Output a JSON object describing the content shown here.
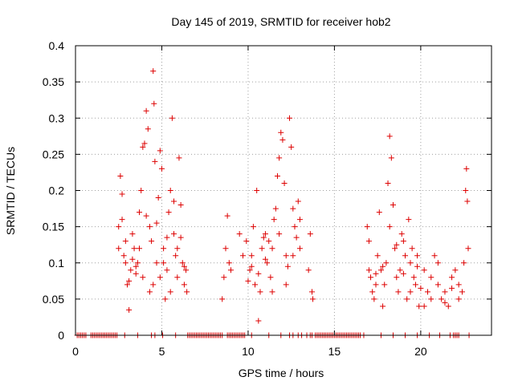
{
  "chart_data": {
    "type": "scatter",
    "title": "Day 145 of 2019, SRMTID for receiver hob2",
    "xlabel": "GPS time / hours",
    "ylabel": "SRMTID / TECUs",
    "xlim": [
      0,
      24.1
    ],
    "ylim": [
      0,
      0.4
    ],
    "x_ticks": [
      0,
      5,
      10,
      15,
      20
    ],
    "x_tick_labels": [
      "0",
      "5",
      "10",
      "15",
      "20"
    ],
    "y_ticks": [
      0,
      0.05,
      0.1,
      0.15,
      0.2,
      0.25,
      0.3,
      0.35,
      0.4
    ],
    "y_tick_labels": [
      "0",
      "0.05",
      "0.1",
      "0.15",
      "0.2",
      "0.25",
      "0.3",
      "0.35",
      "0.4"
    ],
    "grid": true,
    "marker": "+",
    "series": [
      {
        "name": "SRMTID",
        "color": "#dd0000",
        "points": [
          [
            2.5,
            0.15
          ],
          [
            2.6,
            0.22
          ],
          [
            2.7,
            0.195
          ],
          [
            2.8,
            0.11
          ],
          [
            2.9,
            0.13
          ],
          [
            3.0,
            0.07
          ],
          [
            3.1,
            0.035
          ],
          [
            3.2,
            0.09
          ],
          [
            3.3,
            0.14
          ],
          [
            3.4,
            0.12
          ],
          [
            3.5,
            0.085
          ],
          [
            3.6,
            0.1
          ],
          [
            3.7,
            0.17
          ],
          [
            3.8,
            0.2
          ],
          [
            3.9,
            0.26
          ],
          [
            4.0,
            0.265
          ],
          [
            4.1,
            0.31
          ],
          [
            4.2,
            0.285
          ],
          [
            4.3,
            0.15
          ],
          [
            4.4,
            0.13
          ],
          [
            4.5,
            0.365
          ],
          [
            4.55,
            0.32
          ],
          [
            4.6,
            0.24
          ],
          [
            4.7,
            0.1
          ],
          [
            4.8,
            0.19
          ],
          [
            4.9,
            0.255
          ],
          [
            5.0,
            0.23
          ],
          [
            5.1,
            0.12
          ],
          [
            5.2,
            0.05
          ],
          [
            5.3,
            0.09
          ],
          [
            5.4,
            0.17
          ],
          [
            5.5,
            0.2
          ],
          [
            5.6,
            0.3
          ],
          [
            5.7,
            0.14
          ],
          [
            5.8,
            0.11
          ],
          [
            5.9,
            0.08
          ],
          [
            6.0,
            0.245
          ],
          [
            6.1,
            0.18
          ],
          [
            6.2,
            0.1
          ],
          [
            6.3,
            0.07
          ],
          [
            6.4,
            0.09
          ],
          [
            6.45,
            0.06
          ],
          [
            2.5,
            0.12
          ],
          [
            2.7,
            0.16
          ],
          [
            2.9,
            0.1
          ],
          [
            3.1,
            0.075
          ],
          [
            3.3,
            0.105
          ],
          [
            3.5,
            0.095
          ],
          [
            3.7,
            0.12
          ],
          [
            3.9,
            0.08
          ],
          [
            4.1,
            0.165
          ],
          [
            4.3,
            0.06
          ],
          [
            4.5,
            0.07
          ],
          [
            4.7,
            0.155
          ],
          [
            4.9,
            0.08
          ],
          [
            5.1,
            0.1
          ],
          [
            5.3,
            0.135
          ],
          [
            5.5,
            0.06
          ],
          [
            5.7,
            0.185
          ],
          [
            5.9,
            0.12
          ],
          [
            6.1,
            0.135
          ],
          [
            6.3,
            0.095
          ],
          [
            8.5,
            0.05
          ],
          [
            8.6,
            0.08
          ],
          [
            8.7,
            0.12
          ],
          [
            8.8,
            0.165
          ],
          [
            8.9,
            0.1
          ],
          [
            9.0,
            0.09
          ],
          [
            9.5,
            0.14
          ],
          [
            9.7,
            0.11
          ],
          [
            9.9,
            0.13
          ],
          [
            10.0,
            0.075
          ],
          [
            10.1,
            0.09
          ],
          [
            10.2,
            0.11
          ],
          [
            10.3,
            0.15
          ],
          [
            10.4,
            0.07
          ],
          [
            10.5,
            0.2
          ],
          [
            10.6,
            0.02
          ],
          [
            10.7,
            0.06
          ],
          [
            10.8,
            0.12
          ],
          [
            10.9,
            0.135
          ],
          [
            11.0,
            0.14
          ],
          [
            11.1,
            0.1
          ],
          [
            11.2,
            0.13
          ],
          [
            11.3,
            0.08
          ],
          [
            11.4,
            0.06
          ],
          [
            11.5,
            0.16
          ],
          [
            11.6,
            0.175
          ],
          [
            11.7,
            0.22
          ],
          [
            11.8,
            0.245
          ],
          [
            11.9,
            0.28
          ],
          [
            12.0,
            0.27
          ],
          [
            12.1,
            0.21
          ],
          [
            12.2,
            0.11
          ],
          [
            12.3,
            0.095
          ],
          [
            12.4,
            0.3
          ],
          [
            12.5,
            0.26
          ],
          [
            12.6,
            0.175
          ],
          [
            12.7,
            0.15
          ],
          [
            12.8,
            0.135
          ],
          [
            12.9,
            0.185
          ],
          [
            13.0,
            0.12
          ],
          [
            10.2,
            0.095
          ],
          [
            10.6,
            0.085
          ],
          [
            11.0,
            0.105
          ],
          [
            11.4,
            0.12
          ],
          [
            11.8,
            0.14
          ],
          [
            12.2,
            0.07
          ],
          [
            12.6,
            0.11
          ],
          [
            13.0,
            0.16
          ],
          [
            13.5,
            0.09
          ],
          [
            13.6,
            0.14
          ],
          [
            13.7,
            0.06
          ],
          [
            13.75,
            0.05
          ],
          [
            16.9,
            0.15
          ],
          [
            17.0,
            0.13
          ],
          [
            17.1,
            0.08
          ],
          [
            17.2,
            0.06
          ],
          [
            17.3,
            0.05
          ],
          [
            17.4,
            0.085
          ],
          [
            17.5,
            0.11
          ],
          [
            17.6,
            0.17
          ],
          [
            17.7,
            0.09
          ],
          [
            17.8,
            0.04
          ],
          [
            17.9,
            0.07
          ],
          [
            18.0,
            0.1
          ],
          [
            18.1,
            0.21
          ],
          [
            18.2,
            0.275
          ],
          [
            18.3,
            0.245
          ],
          [
            18.4,
            0.18
          ],
          [
            18.5,
            0.12
          ],
          [
            18.6,
            0.08
          ],
          [
            18.7,
            0.06
          ],
          [
            18.8,
            0.09
          ],
          [
            18.9,
            0.14
          ],
          [
            19.0,
            0.13
          ],
          [
            19.1,
            0.11
          ],
          [
            19.2,
            0.05
          ],
          [
            19.3,
            0.16
          ],
          [
            19.4,
            0.1
          ],
          [
            19.5,
            0.12
          ],
          [
            19.6,
            0.08
          ],
          [
            19.7,
            0.07
          ],
          [
            19.8,
            0.095
          ],
          [
            19.9,
            0.04
          ],
          [
            20.0,
            0.065
          ],
          [
            20.2,
            0.09
          ],
          [
            20.4,
            0.06
          ],
          [
            20.6,
            0.05
          ],
          [
            20.8,
            0.11
          ],
          [
            21.0,
            0.07
          ],
          [
            21.2,
            0.05
          ],
          [
            21.4,
            0.06
          ],
          [
            21.6,
            0.04
          ],
          [
            21.8,
            0.08
          ],
          [
            22.0,
            0.09
          ],
          [
            22.2,
            0.07
          ],
          [
            22.4,
            0.06
          ],
          [
            22.5,
            0.1
          ],
          [
            22.6,
            0.2
          ],
          [
            22.65,
            0.23
          ],
          [
            22.7,
            0.185
          ],
          [
            22.75,
            0.12
          ],
          [
            17.0,
            0.09
          ],
          [
            17.4,
            0.07
          ],
          [
            17.8,
            0.095
          ],
          [
            18.2,
            0.15
          ],
          [
            18.6,
            0.125
          ],
          [
            19.0,
            0.085
          ],
          [
            19.4,
            0.06
          ],
          [
            19.8,
            0.11
          ],
          [
            20.2,
            0.04
          ],
          [
            20.6,
            0.08
          ],
          [
            21.0,
            0.1
          ],
          [
            21.4,
            0.045
          ],
          [
            21.8,
            0.065
          ],
          [
            22.2,
            0.05
          ],
          [
            0.1,
            0
          ],
          [
            0.2,
            0
          ],
          [
            0.3,
            0
          ],
          [
            0.4,
            0
          ],
          [
            0.5,
            0
          ],
          [
            0.6,
            0
          ],
          [
            0.9,
            0
          ],
          [
            1.0,
            0
          ],
          [
            1.1,
            0
          ],
          [
            1.2,
            0
          ],
          [
            1.3,
            0
          ],
          [
            1.4,
            0
          ],
          [
            1.5,
            0
          ],
          [
            1.6,
            0
          ],
          [
            1.7,
            0
          ],
          [
            1.8,
            0
          ],
          [
            1.9,
            0
          ],
          [
            2.0,
            0
          ],
          [
            2.1,
            0
          ],
          [
            2.2,
            0
          ],
          [
            2.3,
            0
          ],
          [
            2.4,
            0
          ],
          [
            2.85,
            0
          ],
          [
            3.6,
            0
          ],
          [
            4.4,
            0
          ],
          [
            4.6,
            0
          ],
          [
            5.05,
            0
          ],
          [
            5.8,
            0
          ],
          [
            6.5,
            0
          ],
          [
            6.6,
            0
          ],
          [
            6.7,
            0
          ],
          [
            6.8,
            0
          ],
          [
            6.9,
            0
          ],
          [
            7.0,
            0
          ],
          [
            7.1,
            0
          ],
          [
            7.2,
            0
          ],
          [
            7.3,
            0
          ],
          [
            7.4,
            0
          ],
          [
            7.5,
            0
          ],
          [
            7.6,
            0
          ],
          [
            7.7,
            0
          ],
          [
            7.8,
            0
          ],
          [
            7.9,
            0
          ],
          [
            8.0,
            0
          ],
          [
            8.1,
            0
          ],
          [
            8.2,
            0
          ],
          [
            8.3,
            0
          ],
          [
            8.4,
            0
          ],
          [
            8.5,
            0
          ],
          [
            8.8,
            0
          ],
          [
            8.9,
            0
          ],
          [
            9.0,
            0
          ],
          [
            9.1,
            0
          ],
          [
            9.2,
            0
          ],
          [
            9.3,
            0
          ],
          [
            9.4,
            0
          ],
          [
            9.5,
            0
          ],
          [
            9.6,
            0
          ],
          [
            9.7,
            0
          ],
          [
            9.8,
            0
          ],
          [
            10.2,
            0
          ],
          [
            11.2,
            0
          ],
          [
            11.9,
            0
          ],
          [
            12.4,
            0
          ],
          [
            12.6,
            0
          ],
          [
            12.9,
            0
          ],
          [
            13.1,
            0
          ],
          [
            13.4,
            0
          ],
          [
            13.6,
            0
          ],
          [
            13.7,
            0
          ],
          [
            13.9,
            0
          ],
          [
            14.0,
            0
          ],
          [
            14.1,
            0
          ],
          [
            14.2,
            0
          ],
          [
            14.3,
            0
          ],
          [
            14.4,
            0
          ],
          [
            14.5,
            0
          ],
          [
            14.6,
            0
          ],
          [
            14.7,
            0
          ],
          [
            14.8,
            0
          ],
          [
            14.9,
            0
          ],
          [
            15.0,
            0
          ],
          [
            15.1,
            0
          ],
          [
            15.2,
            0
          ],
          [
            15.3,
            0
          ],
          [
            15.4,
            0
          ],
          [
            15.5,
            0
          ],
          [
            15.6,
            0
          ],
          [
            15.7,
            0
          ],
          [
            15.8,
            0
          ],
          [
            15.9,
            0
          ],
          [
            16.0,
            0
          ],
          [
            16.1,
            0
          ],
          [
            16.2,
            0
          ],
          [
            16.3,
            0
          ],
          [
            16.4,
            0
          ],
          [
            16.5,
            0
          ],
          [
            16.7,
            0
          ],
          [
            17.7,
            0
          ],
          [
            18.4,
            0
          ],
          [
            19.1,
            0
          ],
          [
            19.8,
            0
          ],
          [
            20.5,
            0
          ],
          [
            21.1,
            0
          ],
          [
            21.7,
            0
          ],
          [
            21.9,
            0
          ],
          [
            22.0,
            0
          ],
          [
            22.1,
            0
          ],
          [
            22.2,
            0
          ],
          [
            22.8,
            0
          ]
        ]
      }
    ]
  }
}
